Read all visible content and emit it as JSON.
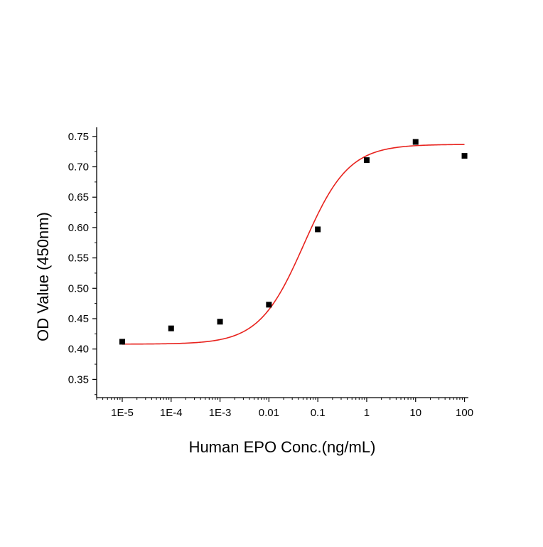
{
  "chart_data": {
    "type": "scatter",
    "title": "",
    "xlabel": "Human EPO Conc.(ng/mL)",
    "ylabel": "OD Value (450nm)",
    "x_scale": "log",
    "xlim": [
      3e-06,
      120
    ],
    "ylim": [
      0.32,
      0.765
    ],
    "x_ticks": [
      {
        "value": 1e-05,
        "label": "1E-5"
      },
      {
        "value": 0.0001,
        "label": "1E-4"
      },
      {
        "value": 0.001,
        "label": "1E-3"
      },
      {
        "value": 0.01,
        "label": "0.01"
      },
      {
        "value": 0.1,
        "label": "0.1"
      },
      {
        "value": 1,
        "label": "1"
      },
      {
        "value": 10,
        "label": "10"
      },
      {
        "value": 100,
        "label": "100"
      }
    ],
    "y_ticks": [
      {
        "value": 0.35,
        "label": "0.35"
      },
      {
        "value": 0.4,
        "label": "0.40"
      },
      {
        "value": 0.45,
        "label": "0.45"
      },
      {
        "value": 0.5,
        "label": "0.50"
      },
      {
        "value": 0.55,
        "label": "0.55"
      },
      {
        "value": 0.6,
        "label": "0.60"
      },
      {
        "value": 0.65,
        "label": "0.65"
      },
      {
        "value": 0.7,
        "label": "0.70"
      },
      {
        "value": 0.75,
        "label": "0.75"
      }
    ],
    "series": [
      {
        "kind": "points",
        "marker": "square",
        "color": "#000000",
        "x": [
          1e-05,
          0.0001,
          0.001,
          0.01,
          0.1,
          1,
          10,
          100
        ],
        "y": [
          0.412,
          0.434,
          0.445,
          0.473,
          0.597,
          0.711,
          0.741,
          0.718
        ]
      },
      {
        "kind": "fit",
        "model": "4PL",
        "color": "#e8231e",
        "x_range": [
          1e-05,
          100
        ],
        "bottom": 0.408,
        "top": 0.737,
        "ec50": 0.052,
        "hill": 0.95
      }
    ],
    "grid": false,
    "legend": "none"
  }
}
